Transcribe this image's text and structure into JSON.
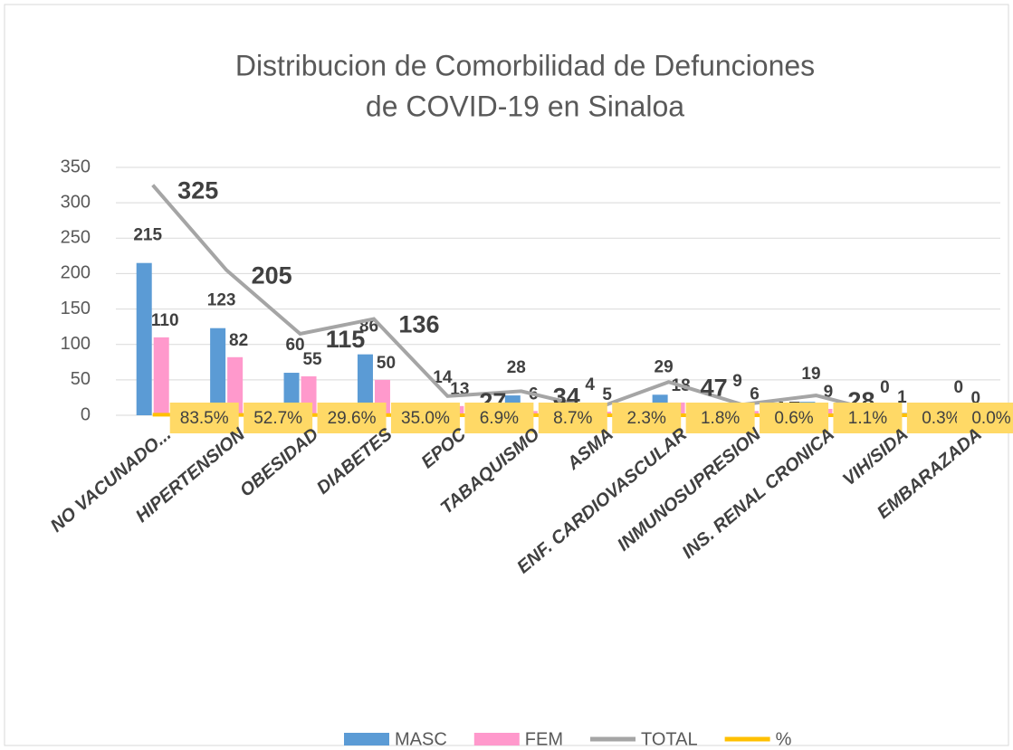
{
  "chart_data": {
    "type": "bar",
    "title": "Distribucion de Comorbilidad de Defunciones de COVID-19 en Sinaloa",
    "categories": [
      "NO VACUNADO...",
      "HIPERTENSION",
      "OBESIDAD",
      "DIABETES",
      "EPOC",
      "TABAQUISMO",
      "ASMA",
      "ENF. CARDIOVASCULAR",
      "INMUNOSUPRESION",
      "INS. RENAL CRONICA",
      "VIH/SIDA",
      "EMBARAZADA"
    ],
    "series": [
      {
        "name": "MASC",
        "type": "bar",
        "color": "#5b9bd5",
        "values": [
          215,
          123,
          60,
          86,
          14,
          28,
          4,
          29,
          9,
          19,
          0,
          0
        ]
      },
      {
        "name": "FEM",
        "type": "bar",
        "color": "#ff99cc",
        "values": [
          110,
          82,
          55,
          50,
          13,
          6,
          5,
          18,
          6,
          9,
          1,
          0
        ]
      },
      {
        "name": "TOTAL",
        "type": "line",
        "color": "#a5a5a5",
        "values": [
          325,
          205,
          115,
          136,
          27,
          34,
          9,
          47,
          15,
          28,
          1,
          0
        ]
      },
      {
        "name": "%",
        "type": "line",
        "color": "#ffc000",
        "values": [
          0.835,
          0.527,
          0.296,
          0.35,
          0.069,
          0.087,
          0.023,
          0.018,
          0.006,
          0.011,
          0.003,
          0.0
        ],
        "value_labels": [
          "83.5%",
          "52.7%",
          "29.6%",
          "35.0%",
          "6.9%",
          "8.7%",
          "2.3%",
          "1.8%",
          "0.6%",
          "1.1%",
          "0.3%",
          "0.0%"
        ]
      }
    ],
    "ylim": [
      0,
      350
    ],
    "yticks": [
      0,
      50,
      100,
      150,
      200,
      250,
      300,
      350
    ],
    "grid": true,
    "legend": "bottom"
  }
}
